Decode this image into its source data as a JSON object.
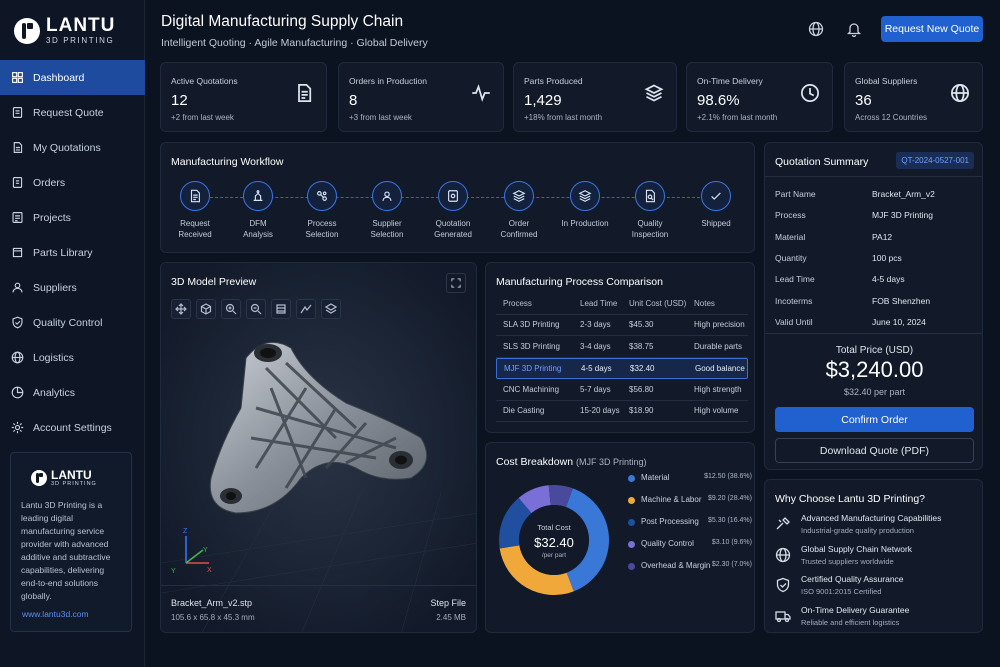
{
  "brand": {
    "name": "LANTU",
    "tagline": "3D PRINTING"
  },
  "nav": [
    {
      "label": "Dashboard",
      "icon": "dashboard-icon",
      "active": true
    },
    {
      "label": "Request Quote",
      "icon": "request-icon"
    },
    {
      "label": "My Quotations",
      "icon": "quotations-icon"
    },
    {
      "label": "Orders",
      "icon": "orders-icon"
    },
    {
      "label": "Projects",
      "icon": "projects-icon"
    },
    {
      "label": "Parts Library",
      "icon": "library-icon"
    },
    {
      "label": "Suppliers",
      "icon": "suppliers-icon"
    },
    {
      "label": "Quality Control",
      "icon": "shield-icon"
    },
    {
      "label": "Logistics",
      "icon": "globe-icon"
    },
    {
      "label": "Analytics",
      "icon": "analytics-icon"
    },
    {
      "label": "Account Settings",
      "icon": "gear-icon"
    }
  ],
  "about": {
    "name": "LANTU",
    "tagline": "3D PRINTING",
    "text": "Lantu 3D Printing is a leading digital manufacturing service provider with advanced additive and subtractive capabilities, delivering end-to-end solutions globally.",
    "link": "www.lantu3d.com"
  },
  "header": {
    "title": "Digital Manufacturing Supply Chain",
    "subtitle": "Intelligent Quoting · Agile Manufacturing · Global Delivery",
    "cta": "Request New Quote"
  },
  "stats": [
    {
      "label": "Active Quotations",
      "value": "12",
      "sub": "+2 from last week",
      "icon": "document-icon"
    },
    {
      "label": "Orders in Production",
      "value": "8",
      "sub": "+3 from last week",
      "icon": "pulse-icon"
    },
    {
      "label": "Parts Produced",
      "value": "1,429",
      "sub": "+18% from last month",
      "icon": "layers-icon"
    },
    {
      "label": "On-Time Delivery",
      "value": "98.6%",
      "sub": "+2.1% from last month",
      "icon": "clock-icon"
    },
    {
      "label": "Global Suppliers",
      "value": "36",
      "sub": "Across 12 Countries",
      "icon": "globe-icon"
    }
  ],
  "workflow": {
    "title": "Manufacturing Workflow",
    "steps": [
      {
        "label": "Request\nReceived",
        "icon": "document-icon"
      },
      {
        "label": "DFM\nAnalysis",
        "icon": "dfm-icon"
      },
      {
        "label": "Process\nSelection",
        "icon": "process-icon"
      },
      {
        "label": "Supplier\nSelection",
        "icon": "supplier-icon"
      },
      {
        "label": "Quotation\nGenerated",
        "icon": "quotation-icon"
      },
      {
        "label": "Order\nConfirmed",
        "icon": "layers-icon"
      },
      {
        "label": "In Production",
        "icon": "layers-icon"
      },
      {
        "label": "Quality\nInspection",
        "icon": "inspection-icon"
      },
      {
        "label": "Shipped",
        "icon": "check-icon"
      }
    ]
  },
  "model": {
    "title": "3D Model Preview",
    "file_name": "Bracket_Arm_v2.stp",
    "dimensions": "105.6 x 65.8 x 45.3 mm",
    "file_type": "Step File",
    "file_size": "2.45 MB",
    "axes": {
      "x": "X",
      "y": "Y",
      "z": "Z"
    }
  },
  "comparison": {
    "title": "Manufacturing Process Comparison",
    "headers": [
      "Process",
      "Lead Time",
      "Unit Cost (USD)",
      "Notes"
    ],
    "rows": [
      [
        "SLA 3D Printing",
        "2-3 days",
        "$45.30",
        "High precision"
      ],
      [
        "SLS 3D Printing",
        "3-4 days",
        "$38.75",
        "Durable parts"
      ],
      [
        "MJF 3D Printing",
        "4-5 days",
        "$32.40",
        "Good balance"
      ],
      [
        "CNC Machining",
        "5-7 days",
        "$56.80",
        "High strength"
      ],
      [
        "Die Casting",
        "15-20 days",
        "$18.90",
        "High volume"
      ]
    ],
    "selected_row": 2
  },
  "cost": {
    "title": "Cost Breakdown",
    "subtitle": "(MJF 3D Printing)",
    "center_label": "Total Cost",
    "center_value": "$32.40",
    "center_sub": "/per part"
  },
  "chart_data": {
    "type": "pie",
    "title": "Cost Breakdown",
    "categories": [
      "Material",
      "Machine & Labor",
      "Post Processing",
      "Quality Control",
      "Overhead & Margin"
    ],
    "values": [
      12.5,
      9.2,
      5.3,
      3.1,
      2.3
    ],
    "value_labels": [
      "$12.50 (38.6%)",
      "$9.20 (28.4%)",
      "$5.30 (16.4%)",
      "$3.10 (9.6%)",
      "$2.30 (7.0%)"
    ],
    "colors": [
      "#3a78d8",
      "#f0a83b",
      "#1f4f9e",
      "#7a6fd6",
      "#4a4a9c"
    ],
    "legend": "right"
  },
  "summary": {
    "title": "Quotation Summary",
    "id": "QT-2024-0527-001",
    "rows": [
      {
        "k": "Part Name",
        "v": "Bracket_Arm_v2"
      },
      {
        "k": "Process",
        "v": "MJF 3D Printing"
      },
      {
        "k": "Material",
        "v": "PA12"
      },
      {
        "k": "Quantity",
        "v": "100 pcs"
      },
      {
        "k": "Lead Time",
        "v": "4-5 days"
      },
      {
        "k": "Incoterms",
        "v": "FOB Shenzhen"
      },
      {
        "k": "Valid Until",
        "v": "June 10, 2024"
      }
    ],
    "total_label": "Total Price (USD)",
    "total": "$3,240.00",
    "per_part": "$32.40 per part",
    "confirm": "Confirm Order",
    "download": "Download Quote (PDF)"
  },
  "why": {
    "title": "Why Choose Lantu 3D Printing?",
    "items": [
      {
        "t": "Advanced Manufacturing Capabilities",
        "s": "Industrial-grade quality production",
        "icon": "tools-icon"
      },
      {
        "t": "Global Supply Chain Network",
        "s": "Trusted suppliers worldwide",
        "icon": "globe-icon"
      },
      {
        "t": "Certified Quality Assurance",
        "s": "ISO 9001:2015 Certified",
        "icon": "shield-check-icon"
      },
      {
        "t": "On-Time Delivery Guarantee",
        "s": "Reliable and efficient logistics",
        "icon": "truck-icon"
      }
    ]
  }
}
